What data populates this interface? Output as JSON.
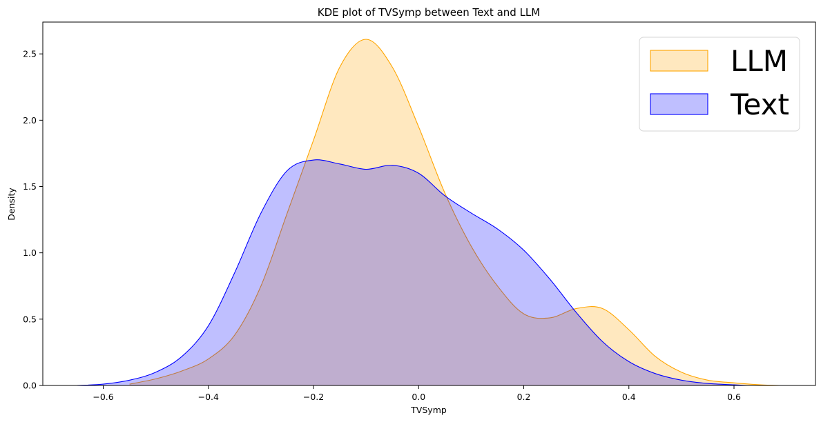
{
  "chart_data": {
    "type": "area",
    "title": "KDE plot of TVSymp between Text and LLM",
    "xlabel": "TVSymp",
    "ylabel": "Density",
    "xlim": [
      -0.715,
      0.755
    ],
    "ylim": [
      0.0,
      2.74
    ],
    "xticks": [
      -0.6,
      -0.4,
      -0.2,
      0.0,
      0.2,
      0.4,
      0.6
    ],
    "xtick_labels": [
      "−0.6",
      "−0.4",
      "−0.2",
      "0.0",
      "0.2",
      "0.4",
      "0.6"
    ],
    "yticks": [
      0.0,
      0.5,
      1.0,
      1.5,
      2.0,
      2.5
    ],
    "ytick_labels": [
      "0.0",
      "0.5",
      "1.0",
      "1.5",
      "2.0",
      "2.5"
    ],
    "grid": false,
    "legend_position": "top-right",
    "series": [
      {
        "name": "LLM",
        "stroke": "#FFA500",
        "fill": "#FFA500",
        "fill_opacity": 0.25,
        "x": [
          -0.55,
          -0.5,
          -0.45,
          -0.4,
          -0.35,
          -0.3,
          -0.25,
          -0.2,
          -0.15,
          -0.1,
          -0.05,
          0.0,
          0.05,
          0.1,
          0.15,
          0.2,
          0.25,
          0.3,
          0.35,
          0.4,
          0.45,
          0.5,
          0.55,
          0.6,
          0.65,
          0.69
        ],
        "y": [
          0.01,
          0.05,
          0.11,
          0.2,
          0.38,
          0.75,
          1.3,
          1.85,
          2.4,
          2.61,
          2.4,
          1.95,
          1.45,
          1.05,
          0.75,
          0.54,
          0.51,
          0.58,
          0.58,
          0.42,
          0.22,
          0.1,
          0.04,
          0.02,
          0.005,
          0.0
        ]
      },
      {
        "name": "Text",
        "stroke": "#0000FF",
        "fill": "#0000FF",
        "fill_opacity": 0.25,
        "x": [
          -0.65,
          -0.6,
          -0.55,
          -0.5,
          -0.45,
          -0.4,
          -0.35,
          -0.3,
          -0.25,
          -0.2,
          -0.15,
          -0.1,
          -0.05,
          0.0,
          0.05,
          0.1,
          0.15,
          0.2,
          0.25,
          0.3,
          0.35,
          0.4,
          0.45,
          0.5,
          0.55,
          0.6,
          0.625
        ],
        "y": [
          0.0,
          0.01,
          0.04,
          0.1,
          0.22,
          0.45,
          0.85,
          1.3,
          1.62,
          1.7,
          1.67,
          1.63,
          1.66,
          1.6,
          1.43,
          1.3,
          1.18,
          1.02,
          0.8,
          0.55,
          0.33,
          0.18,
          0.09,
          0.04,
          0.015,
          0.005,
          0.0
        ]
      }
    ]
  }
}
